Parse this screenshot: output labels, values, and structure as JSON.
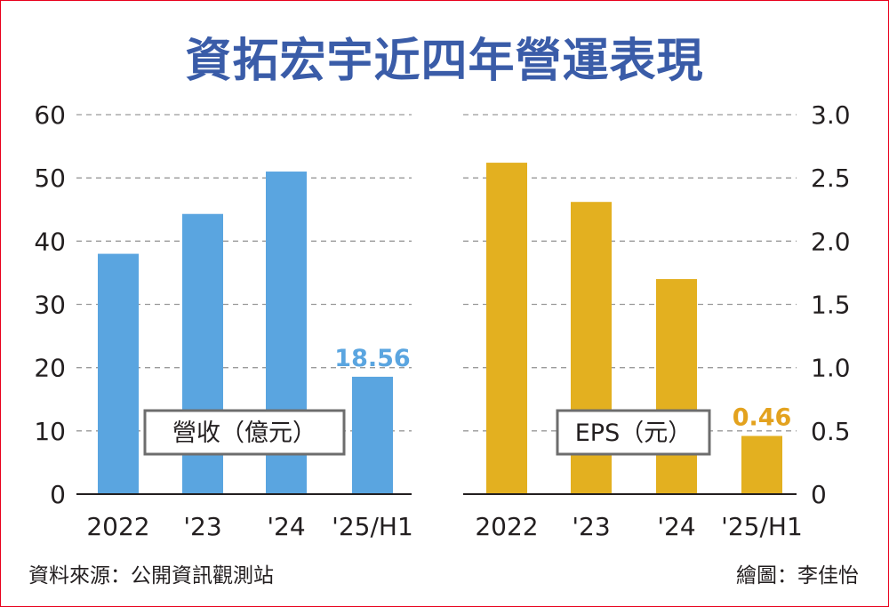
{
  "title": "資拓宏宇近四年營運表現",
  "footer": {
    "source": "資料來源：公開資訊觀測站",
    "credit": "繪圖：李佳怡"
  },
  "chart_data": [
    {
      "type": "bar",
      "legend_label": "營收（億元）",
      "categories": [
        "2022",
        "'23",
        "'24",
        "'25/H1"
      ],
      "values": [
        38,
        44.3,
        51,
        18.56
      ],
      "yticks": [
        "0",
        "10",
        "20",
        "30",
        "40",
        "50",
        "60"
      ],
      "ylim": [
        0,
        60
      ],
      "axis_side": "left",
      "grid": true,
      "color": "#5aa5e0",
      "label_color": "#5aa5e0",
      "data_labels": [
        null,
        null,
        null,
        "18.56"
      ]
    },
    {
      "type": "bar",
      "legend_label": "EPS（元）",
      "categories": [
        "2022",
        "'23",
        "'24",
        "'25/H1"
      ],
      "values": [
        2.62,
        2.31,
        1.7,
        0.46
      ],
      "yticks": [
        "0",
        "0.5",
        "1.0",
        "1.5",
        "2.0",
        "2.5",
        "3.0"
      ],
      "ylim": [
        0,
        3
      ],
      "axis_side": "right",
      "grid": true,
      "color": "#e3b020",
      "label_color": "#e3a21e",
      "data_labels": [
        null,
        null,
        null,
        "0.46"
      ]
    }
  ]
}
